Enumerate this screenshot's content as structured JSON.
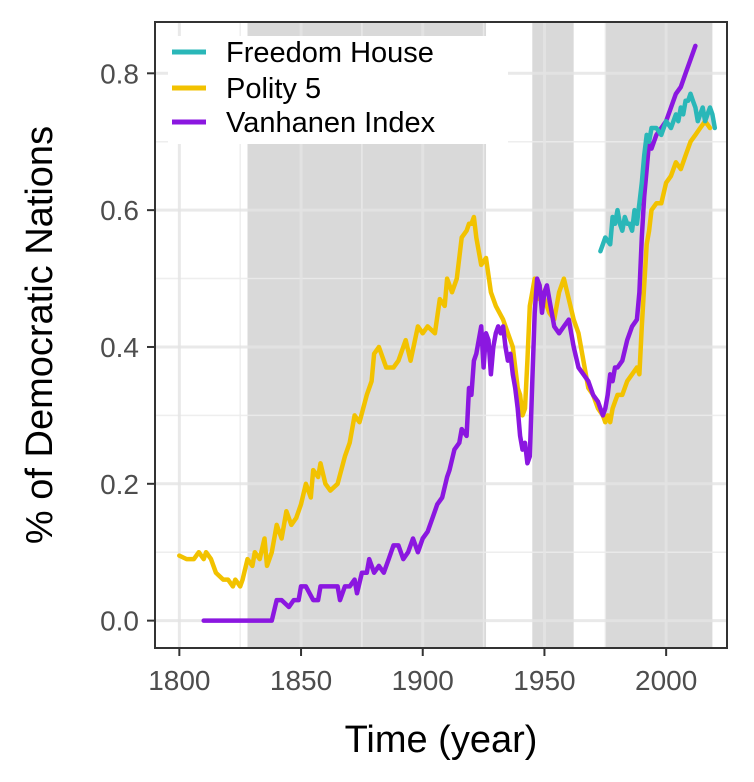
{
  "chart_data": {
    "type": "line",
    "xlabel": "Time (year)",
    "ylabel": "% of Democratic Nations",
    "xlim": [
      1790,
      2025
    ],
    "ylim": [
      -0.04,
      0.875
    ],
    "x_ticks": [
      1800,
      1850,
      1900,
      1950,
      2000
    ],
    "x_tick_labels": [
      "1800",
      "1850",
      "1900",
      "1950",
      "2000"
    ],
    "y_ticks": [
      0.0,
      0.2,
      0.4,
      0.6,
      0.8
    ],
    "y_tick_labels": [
      "0.0",
      "0.2",
      "0.4",
      "0.6",
      "0.8"
    ],
    "grid": true,
    "legend_position": "top-left",
    "shaded_periods": [
      [
        1828,
        1926
      ],
      [
        1945,
        1962
      ],
      [
        1975,
        2019
      ]
    ],
    "series": [
      {
        "name": "Freedom House",
        "color": "#2ab7b8",
        "x": [
          1973,
          1975,
          1977,
          1978,
          1979,
          1980,
          1981,
          1982,
          1983,
          1984,
          1985,
          1986,
          1987,
          1988,
          1989,
          1990,
          1991,
          1992,
          1993,
          1994,
          1996,
          1998,
          2000,
          2002,
          2004,
          2005,
          2006,
          2007,
          2008,
          2009,
          2010,
          2011,
          2012,
          2013,
          2014,
          2015,
          2016,
          2017,
          2018,
          2019,
          2020
        ],
        "y": [
          0.54,
          0.56,
          0.55,
          0.59,
          0.58,
          0.6,
          0.58,
          0.57,
          0.59,
          0.58,
          0.58,
          0.57,
          0.6,
          0.58,
          0.61,
          0.64,
          0.68,
          0.71,
          0.7,
          0.72,
          0.72,
          0.71,
          0.73,
          0.72,
          0.74,
          0.73,
          0.75,
          0.74,
          0.76,
          0.76,
          0.77,
          0.76,
          0.75,
          0.73,
          0.74,
          0.75,
          0.73,
          0.74,
          0.75,
          0.74,
          0.72
        ]
      },
      {
        "name": "Polity 5",
        "color": "#f2c200",
        "x": [
          1800,
          1803,
          1806,
          1808,
          1810,
          1811,
          1813,
          1815,
          1818,
          1820,
          1822,
          1823,
          1825,
          1826,
          1828,
          1830,
          1831,
          1833,
          1835,
          1836,
          1838,
          1840,
          1842,
          1844,
          1846,
          1848,
          1850,
          1852,
          1854,
          1855,
          1857,
          1858,
          1860,
          1862,
          1865,
          1868,
          1870,
          1872,
          1874,
          1877,
          1879,
          1880,
          1882,
          1885,
          1888,
          1890,
          1893,
          1895,
          1898,
          1900,
          1902,
          1905,
          1907,
          1909,
          1910,
          1912,
          1914,
          1916,
          1918,
          1919,
          1920,
          1921,
          1922,
          1924,
          1926,
          1928,
          1930,
          1933,
          1935,
          1937,
          1939,
          1940,
          1941,
          1942,
          1943,
          1944,
          1945,
          1946,
          1947,
          1948,
          1949,
          1950,
          1952,
          1954,
          1956,
          1958,
          1960,
          1962,
          1964,
          1966,
          1968,
          1970,
          1972,
          1974,
          1975,
          1976,
          1977,
          1978,
          1979,
          1980,
          1982,
          1984,
          1986,
          1988,
          1989,
          1990,
          1991,
          1992,
          1993,
          1994,
          1996,
          1998,
          2000,
          2002,
          2004,
          2006,
          2008,
          2010,
          2012,
          2014,
          2016,
          2018
        ],
        "y": [
          0.095,
          0.09,
          0.09,
          0.1,
          0.09,
          0.1,
          0.09,
          0.07,
          0.06,
          0.06,
          0.05,
          0.06,
          0.05,
          0.06,
          0.09,
          0.08,
          0.1,
          0.09,
          0.12,
          0.08,
          0.1,
          0.14,
          0.12,
          0.16,
          0.14,
          0.15,
          0.17,
          0.2,
          0.18,
          0.22,
          0.21,
          0.23,
          0.2,
          0.19,
          0.2,
          0.24,
          0.26,
          0.3,
          0.29,
          0.33,
          0.35,
          0.39,
          0.4,
          0.37,
          0.37,
          0.38,
          0.41,
          0.38,
          0.43,
          0.42,
          0.43,
          0.42,
          0.47,
          0.46,
          0.5,
          0.48,
          0.5,
          0.56,
          0.57,
          0.58,
          0.58,
          0.59,
          0.56,
          0.52,
          0.53,
          0.48,
          0.46,
          0.44,
          0.42,
          0.4,
          0.34,
          0.33,
          0.3,
          0.31,
          0.38,
          0.46,
          0.48,
          0.5,
          0.47,
          0.49,
          0.46,
          0.47,
          0.45,
          0.44,
          0.48,
          0.5,
          0.47,
          0.44,
          0.42,
          0.38,
          0.34,
          0.33,
          0.31,
          0.3,
          0.29,
          0.3,
          0.29,
          0.31,
          0.32,
          0.33,
          0.33,
          0.35,
          0.36,
          0.37,
          0.36,
          0.43,
          0.49,
          0.55,
          0.57,
          0.6,
          0.61,
          0.61,
          0.64,
          0.65,
          0.67,
          0.66,
          0.68,
          0.7,
          0.71,
          0.72,
          0.73,
          0.72
        ],
        "y_trimmed": null
      },
      {
        "name": "Vanhanen Index",
        "color": "#8b17e0",
        "x": [
          1810,
          1815,
          1820,
          1825,
          1830,
          1835,
          1838,
          1840,
          1842,
          1845,
          1847,
          1849,
          1850,
          1852,
          1855,
          1857,
          1858,
          1860,
          1862,
          1865,
          1866,
          1868,
          1870,
          1872,
          1873,
          1875,
          1877,
          1878,
          1880,
          1882,
          1884,
          1886,
          1888,
          1890,
          1892,
          1894,
          1896,
          1898,
          1900,
          1902,
          1904,
          1906,
          1908,
          1910,
          1911,
          1913,
          1915,
          1916,
          1918,
          1919,
          1920,
          1921,
          1922,
          1924,
          1925,
          1926,
          1927,
          1928,
          1929,
          1930,
          1931,
          1932,
          1933,
          1934,
          1935,
          1936,
          1937,
          1938,
          1939,
          1940,
          1941,
          1942,
          1943,
          1944,
          1945,
          1946,
          1947,
          1948,
          1949,
          1950,
          1951,
          1952,
          1954,
          1956,
          1958,
          1960,
          1962,
          1964,
          1966,
          1968,
          1970,
          1972,
          1973,
          1974,
          1975,
          1976,
          1977,
          1978,
          1979,
          1980,
          1982,
          1984,
          1986,
          1988,
          1989,
          1990,
          1991,
          1992,
          1993,
          1994,
          1996,
          1998,
          2000,
          2002,
          2004,
          2006,
          2008,
          2010,
          2012
        ],
        "y": [
          0.0,
          0.0,
          0.0,
          0.0,
          0.0,
          0.0,
          0.0,
          0.03,
          0.03,
          0.02,
          0.03,
          0.03,
          0.05,
          0.05,
          0.03,
          0.03,
          0.05,
          0.05,
          0.05,
          0.05,
          0.03,
          0.05,
          0.05,
          0.06,
          0.04,
          0.07,
          0.07,
          0.09,
          0.07,
          0.08,
          0.07,
          0.09,
          0.11,
          0.11,
          0.09,
          0.1,
          0.12,
          0.1,
          0.12,
          0.13,
          0.15,
          0.17,
          0.18,
          0.21,
          0.22,
          0.25,
          0.26,
          0.28,
          0.27,
          0.34,
          0.33,
          0.38,
          0.39,
          0.43,
          0.37,
          0.42,
          0.41,
          0.36,
          0.4,
          0.42,
          0.43,
          0.42,
          0.43,
          0.4,
          0.38,
          0.39,
          0.36,
          0.34,
          0.31,
          0.27,
          0.25,
          0.26,
          0.23,
          0.24,
          0.35,
          0.45,
          0.5,
          0.49,
          0.45,
          0.48,
          0.49,
          0.47,
          0.43,
          0.42,
          0.43,
          0.44,
          0.4,
          0.37,
          0.36,
          0.35,
          0.33,
          0.32,
          0.31,
          0.3,
          0.31,
          0.33,
          0.36,
          0.35,
          0.37,
          0.37,
          0.38,
          0.41,
          0.43,
          0.44,
          0.48,
          0.56,
          0.62,
          0.66,
          0.7,
          0.69,
          0.71,
          0.72,
          0.73,
          0.75,
          0.77,
          0.78,
          0.8,
          0.82,
          0.84
        ]
      }
    ]
  }
}
